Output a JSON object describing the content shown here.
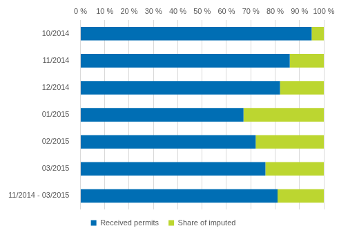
{
  "chart_data": {
    "type": "bar",
    "orientation": "horizontal",
    "stacked": true,
    "categories": [
      "10/2014",
      "11/2014",
      "12/2014",
      "01/2015",
      "02/2015",
      "03/2015",
      "11/2014 - 03/2015"
    ],
    "series": [
      {
        "name": "Received permits",
        "color": "#006eb4",
        "values": [
          95,
          86,
          82,
          67,
          72,
          76,
          81
        ]
      },
      {
        "name": "Share of imputed",
        "color": "#bcd630",
        "values": [
          5,
          14,
          18,
          33,
          28,
          24,
          19
        ]
      }
    ],
    "xlim": [
      0,
      100
    ],
    "xticks": [
      {
        "value": 0,
        "label": "0 %"
      },
      {
        "value": 10,
        "label": "10 %"
      },
      {
        "value": 20,
        "label": "20 %"
      },
      {
        "value": 30,
        "label": "30 %"
      },
      {
        "value": 40,
        "label": "40 %"
      },
      {
        "value": 50,
        "label": "50 %"
      },
      {
        "value": 60,
        "label": "60 %"
      },
      {
        "value": 70,
        "label": "70 %"
      },
      {
        "value": 80,
        "label": "80 %"
      },
      {
        "value": 90,
        "label": "90 %"
      },
      {
        "value": 100,
        "label": "100 %"
      }
    ],
    "grid": true,
    "legend": "bottom"
  }
}
